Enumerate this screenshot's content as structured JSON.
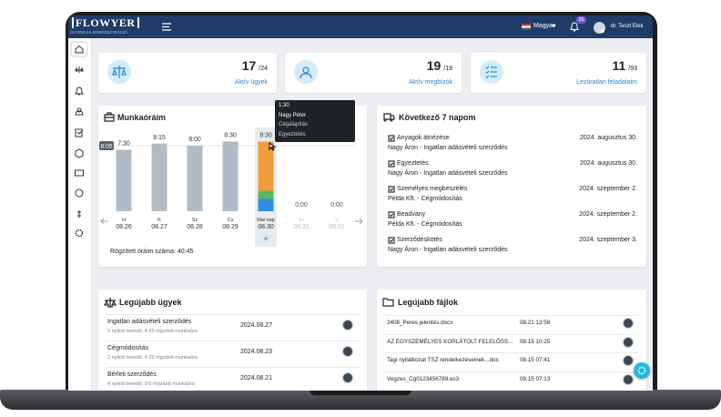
{
  "header": {
    "logo": "FLOWYER",
    "logo_subtitle": "ÜGYFELES ADMINISZTRÁCIÓ",
    "language": "Magyar",
    "notification_count": "65",
    "user": "dr. Teszt Elek"
  },
  "stats": [
    {
      "value": "17",
      "total": "/24",
      "label": "Aktív ügyek"
    },
    {
      "value": "19",
      "total": "/19",
      "label": "Aktív megbízók"
    },
    {
      "value": "11",
      "total": "/93",
      "label": "Lezáratlan feladataim"
    }
  ],
  "work_hours": {
    "title": "Munkaóráim",
    "target": 8,
    "target_label": "8:00",
    "days": [
      {
        "day": "H",
        "date": "08.26",
        "hours": 7.5,
        "hours_label": "7:30"
      },
      {
        "day": "K",
        "date": "08.27",
        "hours": 8.25,
        "hours_label": "8:15"
      },
      {
        "day": "Sz",
        "date": "08.28",
        "hours": 8,
        "hours_label": "8:00"
      },
      {
        "day": "Cs",
        "date": "08.29",
        "hours": 8.5,
        "hours_label": "8:30"
      },
      {
        "day": "Mai nap",
        "date": "08.30",
        "hours": 8.5,
        "hours_label": "8:30",
        "segments": [
          {
            "value": 1.5,
            "color": "#2d8fe0"
          },
          {
            "value": 1,
            "color": "#5cb85c"
          },
          {
            "value": 6,
            "color": "#f39a3a"
          }
        ]
      },
      {
        "day": "Sz",
        "date": "08.31",
        "hours": 0,
        "hours_label": "0:00"
      },
      {
        "day": "V",
        "date": "09.01",
        "hours": 0,
        "hours_label": "0:00"
      }
    ],
    "tooltip": {
      "time": "1:30",
      "client": "Nagy Péter",
      "case": "Cégalapítás",
      "task": "Egyeztetés"
    },
    "total": "Rögzített óráim száma: 40:45"
  },
  "next_days": {
    "title": "Következő 7 napom",
    "items": [
      {
        "title": "Anyagok átnézése",
        "subtitle": "Nagy Áron - Ingatlan adásvételi szerződés",
        "date": "2024. augusztus 30."
      },
      {
        "title": "Egyeztetés",
        "subtitle": "Nagy Áron - Ingatlan adásvételi szerződés",
        "date": "2024. augusztus 30."
      },
      {
        "title": "Személyes megbeszélés",
        "subtitle": "Példa Kft. - Cégmódosítás",
        "date": "2024. szeptember 2."
      },
      {
        "title": "Beadvány",
        "subtitle": "Példa Kft. - Cégmódosítás",
        "date": "2024. szeptember 2."
      },
      {
        "title": "Szerződéskötés",
        "subtitle": "Nagy Áron - Ingatlan adásvételi szerződés",
        "date": "2024. szeptember 3."
      }
    ]
  },
  "latest_cases": {
    "title": "Legújabb ügyek",
    "items": [
      {
        "title": "Ingatlan adásvételi szerződés",
        "meta": "3 nyitott teendő, 4:25 rögzített munkaóra",
        "date": "2024.08.27"
      },
      {
        "title": "Cégmódosítás",
        "meta": "2 nyitott teendő, 4:25 rögzített munkaóra",
        "date": "2024.08.23"
      },
      {
        "title": "Bérleti szerződés",
        "meta": "4 nyitott teendő, 3:5 rögzített munkaóra",
        "date": "2024.08.21"
      }
    ]
  },
  "latest_files": {
    "title": "Legújabb fájlok",
    "items": [
      {
        "name": "2408_Peres jelentés.docx",
        "date": "08.21 13:59"
      },
      {
        "name": "AZ EGYSZEMÉLYES KORLÁTOLT FELELŐSS...",
        "date": "08.16 10:25"
      },
      {
        "name": "Tagi nyilatkozat TSZ rendelkezéseinek...doc",
        "date": "08.15 07:41"
      },
      {
        "name": "Vegzes_Cg0123456789.es3",
        "date": "08.15 07:13"
      }
    ]
  }
}
